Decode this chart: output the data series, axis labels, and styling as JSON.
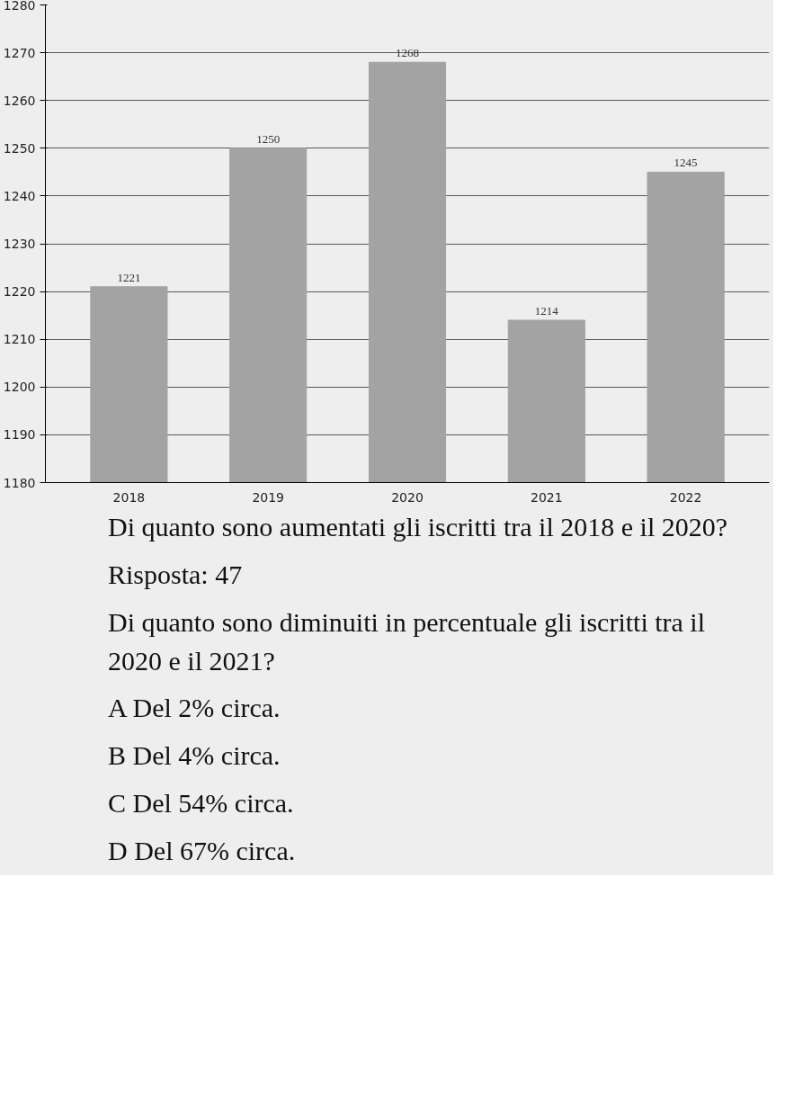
{
  "chart_data": {
    "type": "bar",
    "categories": [
      "2018",
      "2019",
      "2020",
      "2021",
      "2022"
    ],
    "values": [
      1221,
      1250,
      1268,
      1214,
      1245
    ],
    "color": "#a3a3a3",
    "ylim": [
      1180,
      1280
    ],
    "yticks": [
      1180,
      1190,
      1200,
      1210,
      1220,
      1230,
      1240,
      1250,
      1260,
      1270,
      1280
    ],
    "grid": "y",
    "data_labels": true,
    "annotations": [
      "Di quanto sono aumentati gli iscritti tra il 2018 e il 2020?",
      "Risposta: 47",
      "Di quanto sono diminuiti in percentuale gli iscritti tra il 2020 e il 2021?",
      "A  Del 2% circa.",
      "B  Del 4% circa.",
      "C  Del 54% circa.",
      "D  Del 67% circa."
    ]
  }
}
